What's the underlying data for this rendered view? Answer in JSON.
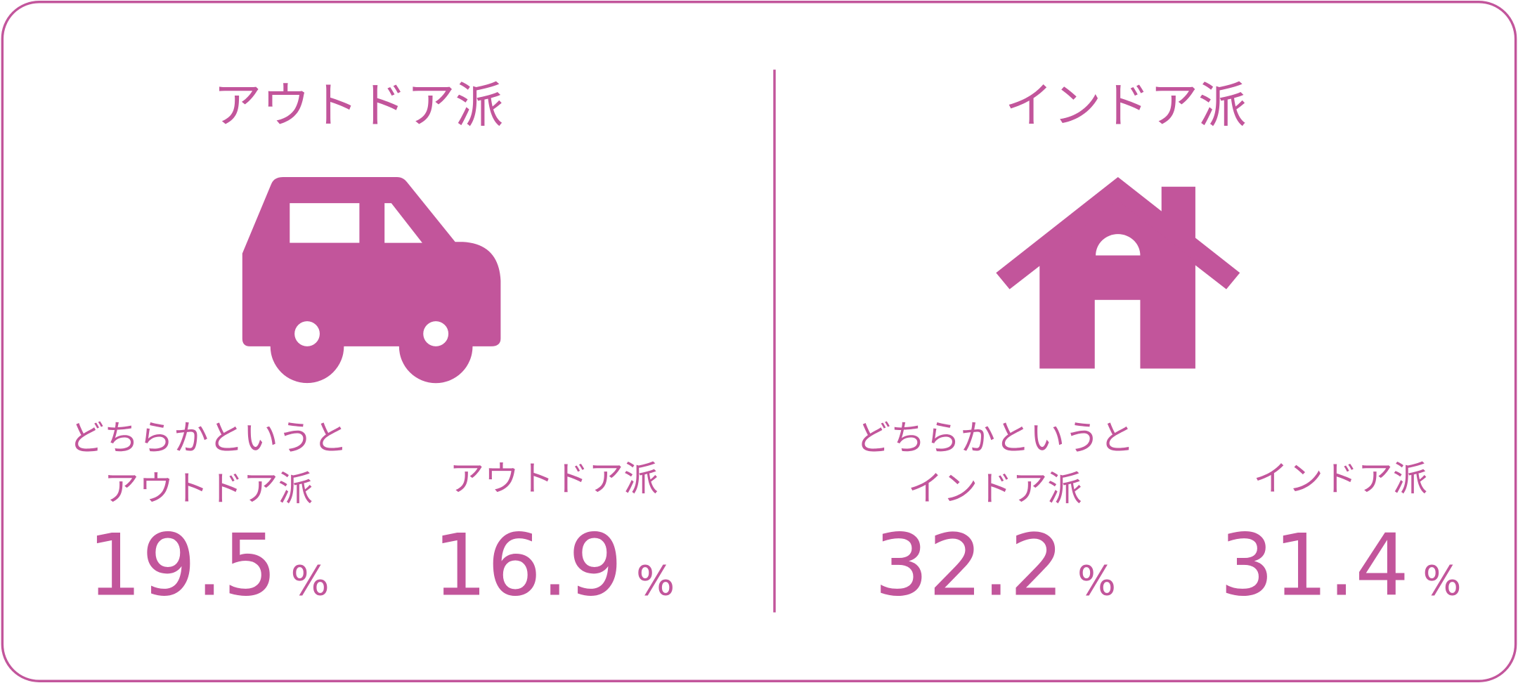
{
  "outdoor": {
    "title": "アウトドア派",
    "stats": [
      {
        "label": [
          "どちらかというと",
          "アウトドア派"
        ],
        "value": 19.5,
        "unit": "%"
      },
      {
        "label": [
          "アウトドア派"
        ],
        "value": 16.9,
        "unit": "%"
      }
    ]
  },
  "indoor": {
    "title": "インドア派",
    "stats": [
      {
        "label": [
          "どちらかというと",
          "インドア派"
        ],
        "value": 32.2,
        "unit": "%"
      },
      {
        "label": [
          "インドア派"
        ],
        "value": 31.4,
        "unit": "%"
      }
    ]
  }
}
